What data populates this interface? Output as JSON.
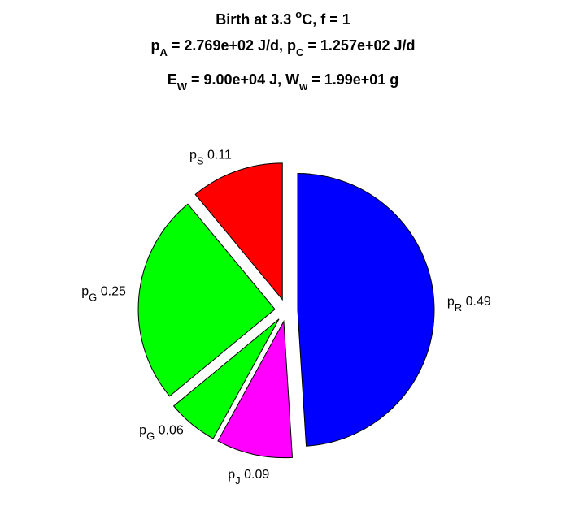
{
  "chart_data": {
    "type": "pie",
    "title_lines": [
      [
        {
          "t": "Birth at 3.3 "
        },
        {
          "t": "o",
          "s": "sup"
        },
        {
          "t": "C, f = 1"
        }
      ],
      [
        {
          "t": "p"
        },
        {
          "t": "A",
          "s": "sub"
        },
        {
          "t": " = 2.769e+02 J/d, p"
        },
        {
          "t": "C",
          "s": "sub"
        },
        {
          "t": " = 1.257e+02 J/d"
        }
      ],
      [
        {
          "t": "E"
        },
        {
          "t": "W",
          "s": "sub"
        },
        {
          "t": " = 9.00e+04 J, W"
        },
        {
          "t": "w",
          "s": "sub"
        },
        {
          "t": " = 1.99e+01 g"
        }
      ]
    ],
    "categories": [
      [
        "p",
        "R"
      ],
      [
        "p",
        "J"
      ],
      [
        "p",
        "G"
      ],
      [
        "p",
        "G"
      ],
      [
        "p",
        "S"
      ]
    ],
    "values": [
      0.49,
      0.09,
      0.06,
      0.25,
      0.11
    ],
    "colors": [
      "#0000ff",
      "#ff00ff",
      "#00ff00",
      "#00ff00",
      "#ff0000"
    ]
  }
}
